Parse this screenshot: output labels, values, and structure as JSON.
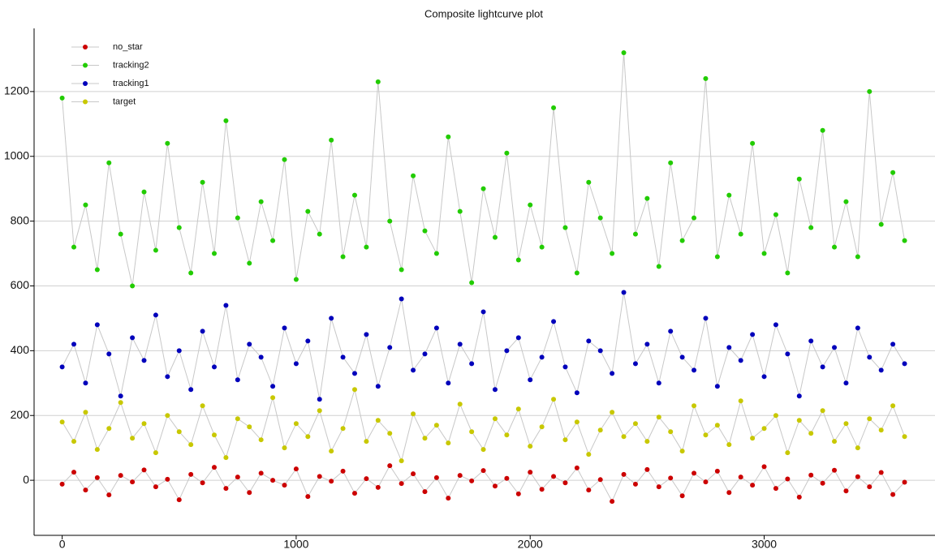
{
  "chart_data": {
    "type": "scatter",
    "title": "Composite lightcurve plot",
    "x": [
      0,
      50,
      100,
      150,
      200,
      250,
      300,
      350,
      400,
      450,
      500,
      550,
      600,
      650,
      700,
      750,
      800,
      850,
      900,
      950,
      1000,
      1050,
      1100,
      1150,
      1200,
      1250,
      1300,
      1350,
      1400,
      1450,
      1500,
      1550,
      1600,
      1650,
      1700,
      1750,
      1800,
      1850,
      1900,
      1950,
      2000,
      2050,
      2100,
      2150,
      2200,
      2250,
      2300,
      2350,
      2400,
      2450,
      2500,
      2550,
      2600,
      2650,
      2700,
      2750,
      2800,
      2850,
      2900,
      2950,
      3000,
      3050,
      3100,
      3150,
      3200,
      3250,
      3300,
      3350,
      3400,
      3450,
      3500,
      3550,
      3600
    ],
    "series": [
      {
        "name": "no_star",
        "color": "#cc0000",
        "values": [
          -12,
          25,
          -30,
          8,
          -45,
          15,
          -5,
          32,
          -20,
          3,
          -60,
          18,
          -8,
          40,
          -25,
          10,
          -38,
          22,
          0,
          -15,
          35,
          -50,
          12,
          -3,
          28,
          -40,
          5,
          -22,
          45,
          -10,
          20,
          -35,
          8,
          -55,
          15,
          -2,
          30,
          -18,
          6,
          -42,
          25,
          -28,
          12,
          -8,
          38,
          -30,
          2,
          -65,
          18,
          -12,
          33,
          -20,
          7,
          -48,
          22,
          -5,
          28,
          -38,
          10,
          -15,
          42,
          -25,
          4,
          -52,
          16,
          -9,
          31,
          -33,
          11,
          -20,
          24,
          -44,
          -6
        ]
      },
      {
        "name": "tracking2",
        "color": "#22cc00",
        "values": [
          1180,
          720,
          850,
          650,
          980,
          760,
          600,
          890,
          710,
          1040,
          780,
          640,
          920,
          700,
          1110,
          810,
          670,
          860,
          740,
          990,
          620,
          830,
          760,
          1050,
          690,
          880,
          720,
          1230,
          800,
          650,
          940,
          770,
          700,
          1060,
          830,
          610,
          900,
          750,
          1010,
          680,
          850,
          720,
          1150,
          780,
          640,
          920,
          810,
          700,
          1320,
          760,
          870,
          660,
          980,
          740,
          810,
          1240,
          690,
          880,
          760,
          1040,
          700,
          820,
          640,
          930,
          780,
          1080,
          720,
          860,
          690,
          1200,
          790,
          950,
          740
        ]
      },
      {
        "name": "tracking1",
        "color": "#0000bb",
        "values": [
          350,
          420,
          300,
          480,
          390,
          260,
          440,
          370,
          510,
          320,
          400,
          280,
          460,
          350,
          540,
          310,
          420,
          380,
          290,
          470,
          360,
          430,
          250,
          500,
          380,
          330,
          450,
          290,
          410,
          560,
          340,
          390,
          470,
          300,
          420,
          360,
          520,
          280,
          400,
          440,
          310,
          380,
          490,
          350,
          270,
          430,
          400,
          330,
          580,
          360,
          420,
          300,
          460,
          380,
          340,
          500,
          290,
          410,
          370,
          450,
          320,
          480,
          390,
          260,
          430,
          350,
          410,
          300,
          470,
          380,
          340,
          420,
          360
        ]
      },
      {
        "name": "target",
        "color": "#c8c800",
        "values": [
          180,
          120,
          210,
          95,
          160,
          240,
          130,
          175,
          85,
          200,
          150,
          110,
          230,
          140,
          70,
          190,
          165,
          125,
          255,
          100,
          175,
          135,
          215,
          90,
          160,
          280,
          120,
          185,
          145,
          60,
          205,
          130,
          170,
          115,
          235,
          150,
          95,
          190,
          140,
          220,
          105,
          165,
          250,
          125,
          180,
          80,
          155,
          210,
          135,
          175,
          120,
          195,
          150,
          90,
          230,
          140,
          170,
          110,
          245,
          130,
          160,
          200,
          85,
          185,
          145,
          215,
          120,
          175,
          100,
          190,
          155,
          230,
          135
        ]
      }
    ],
    "xlim": [
      -120,
      3730
    ],
    "ylim": [
      -170,
      1395
    ],
    "xticks": [
      0,
      1000,
      2000,
      3000
    ],
    "yticks": [
      0,
      200,
      400,
      600,
      800,
      1000,
      1200
    ],
    "grid": true,
    "legend": "upper left",
    "line_color": "#c8c8c8"
  }
}
